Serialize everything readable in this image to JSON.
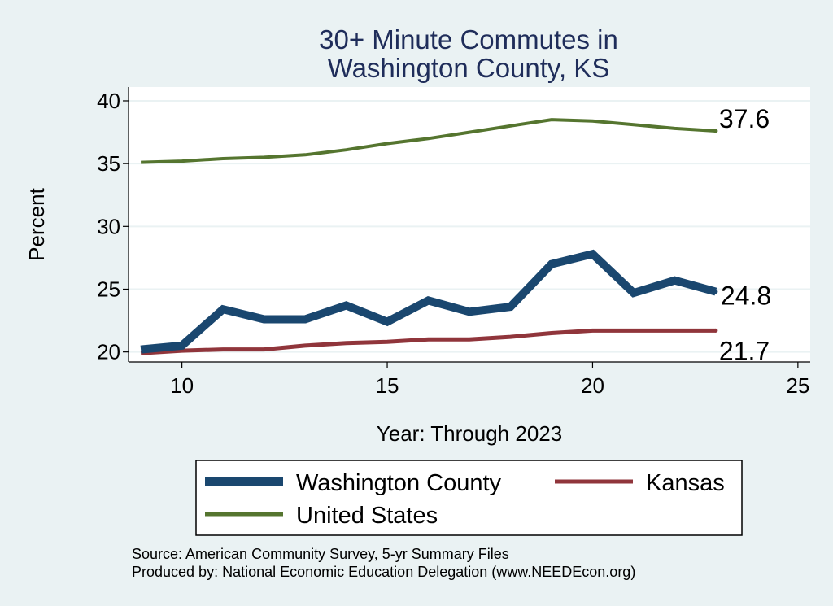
{
  "chart_data": {
    "type": "line",
    "title": [
      "30+ Minute Commutes in",
      "Washington County, KS"
    ],
    "xlabel": "Year: Through 2023",
    "ylabel": "Percent",
    "xlim": [
      8.7,
      25.3
    ],
    "ylim": [
      19.2,
      41.1
    ],
    "xticks": [
      10,
      15,
      20,
      25
    ],
    "yticks": [
      20,
      25,
      30,
      35,
      40
    ],
    "grid": true,
    "series": [
      {
        "name": "Washington County",
        "color": "#1a476f",
        "x": [
          9,
          10,
          11,
          12,
          13,
          14,
          15,
          16,
          17,
          18,
          19,
          20,
          21,
          22,
          23
        ],
        "values": [
          20.2,
          20.5,
          23.4,
          22.6,
          22.6,
          23.7,
          22.4,
          24.1,
          23.2,
          23.6,
          27.0,
          27.8,
          24.7,
          25.7,
          24.8
        ],
        "end_label": "24.8"
      },
      {
        "name": "Kansas",
        "color": "#90353b",
        "x": [
          9,
          10,
          11,
          12,
          13,
          14,
          15,
          16,
          17,
          18,
          19,
          20,
          21,
          22,
          23
        ],
        "values": [
          19.9,
          20.1,
          20.2,
          20.2,
          20.5,
          20.7,
          20.8,
          21.0,
          21.0,
          21.2,
          21.5,
          21.7,
          21.7,
          21.7,
          21.7
        ],
        "end_label": "21.7"
      },
      {
        "name": "United States",
        "color": "#55752f",
        "x": [
          9,
          10,
          11,
          12,
          13,
          14,
          15,
          16,
          17,
          18,
          19,
          20,
          21,
          22,
          23
        ],
        "values": [
          35.1,
          35.2,
          35.4,
          35.5,
          35.7,
          36.1,
          36.6,
          37.0,
          37.5,
          38.0,
          38.5,
          38.4,
          38.1,
          37.8,
          37.6
        ],
        "end_label": "37.6"
      }
    ],
    "legend": {
      "placement": "bottom",
      "items": [
        "Washington County",
        "Kansas",
        "United States"
      ]
    }
  },
  "source_lines": [
    "Source: American Community Survey, 5-yr Summary Files",
    "Produced by: National Economic Education Delegation (www.NEEDEcon.org)"
  ]
}
